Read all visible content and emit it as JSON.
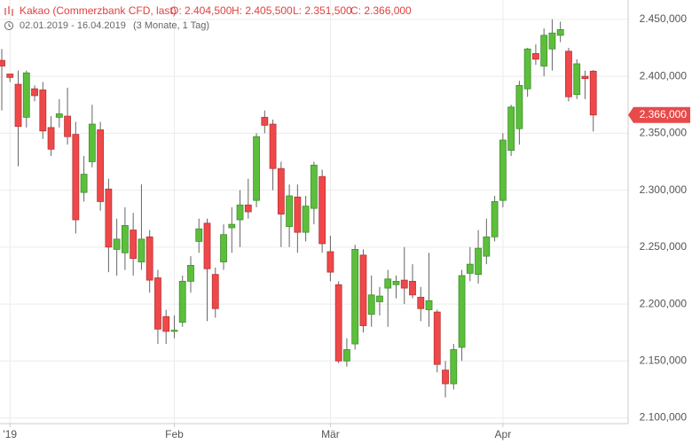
{
  "header": {
    "title": "Kakao (Commerzbank CFD, last)",
    "open": "O: 2.404,500",
    "high": "H: 2.405,500",
    "low": "L: 2.351,500",
    "close": "C: 2.366,000",
    "period": "02.01.2019 - 16.04.2019",
    "span": "(3 Monate, 1 Tag)"
  },
  "chart_data": {
    "type": "candlestick",
    "categories": [
      null,
      "'19",
      null,
      null,
      null,
      null,
      null,
      null,
      null,
      null,
      null,
      null,
      null,
      null,
      null,
      null,
      null,
      null,
      null,
      null,
      null,
      "Feb",
      null,
      null,
      null,
      null,
      null,
      null,
      null,
      null,
      null,
      null,
      null,
      null,
      null,
      null,
      null,
      null,
      null,
      null,
      "Mär",
      null,
      null,
      null,
      null,
      null,
      null,
      null,
      null,
      null,
      null,
      null,
      null,
      null,
      null,
      null,
      null,
      null,
      null,
      null,
      null,
      "Apr",
      null,
      null,
      null,
      null,
      null,
      null,
      null,
      null,
      null,
      null,
      null
    ],
    "open": [
      2414,
      2402,
      2393,
      2364,
      2389,
      2388,
      2355,
      2364,
      2365,
      2349,
      2298,
      2325,
      2353,
      2301,
      2248,
      2245,
      2265,
      2237,
      2259,
      2223,
      2189,
      2176,
      2184,
      2220,
      2255,
      2271,
      2226,
      2237,
      2267,
      2274,
      2287,
      2291,
      2364,
      2358,
      2319,
      2268,
      2294,
      2263,
      2284,
      2312,
      2246,
      2217,
      2150,
      2165,
      2243,
      2191,
      2202,
      2214,
      2217,
      2221,
      2220,
      2206,
      2195,
      2193,
      2142,
      2130,
      2162,
      2227,
      2226,
      2242,
      2259,
      2291,
      2335,
      2354,
      2389,
      2420,
      2409,
      2424,
      2436,
      2422,
      2384,
      2400,
      2404.5
    ],
    "high": [
      2424,
      2402,
      2405,
      2405,
      2392,
      2395,
      2365,
      2380,
      2390,
      2360,
      2330,
      2375,
      2360,
      2310,
      2275,
      2285,
      2280,
      2305,
      2265,
      2230,
      2195,
      2190,
      2225,
      2242,
      2275,
      2275,
      2232,
      2270,
      2285,
      2300,
      2310,
      2350,
      2370,
      2362,
      2325,
      2305,
      2305,
      2295,
      2325,
      2318,
      2260,
      2220,
      2170,
      2252,
      2248,
      2225,
      2215,
      2230,
      2225,
      2250,
      2235,
      2215,
      2245,
      2195,
      2150,
      2165,
      2230,
      2250,
      2265,
      2275,
      2295,
      2350,
      2375,
      2396,
      2425,
      2428,
      2442,
      2450,
      2448,
      2425,
      2415,
      2405,
      2405.5
    ],
    "low": [
      2370,
      2395,
      2321,
      2355,
      2378,
      2345,
      2330,
      2355,
      2340,
      2262,
      2290,
      2320,
      2282,
      2228,
      2225,
      2230,
      2225,
      2230,
      2210,
      2165,
      2165,
      2170,
      2180,
      2210,
      2245,
      2185,
      2188,
      2230,
      2245,
      2250,
      2275,
      2285,
      2350,
      2300,
      2250,
      2250,
      2245,
      2255,
      2270,
      2245,
      2220,
      2148,
      2145,
      2160,
      2175,
      2180,
      2190,
      2180,
      2205,
      2200,
      2205,
      2185,
      2180,
      2140,
      2118,
      2125,
      2150,
      2220,
      2218,
      2235,
      2255,
      2285,
      2330,
      2340,
      2382,
      2410,
      2400,
      2405,
      2430,
      2378,
      2380,
      2380,
      2351.5
    ],
    "close": [
      2409,
      2399,
      2356,
      2403,
      2383,
      2352,
      2336,
      2367,
      2347,
      2274,
      2314,
      2358,
      2290,
      2250,
      2257,
      2269,
      2240,
      2257,
      2221,
      2178,
      2176,
      2177,
      2220,
      2234,
      2266,
      2231,
      2196,
      2261,
      2270,
      2287,
      2281,
      2347,
      2357,
      2319,
      2279,
      2295,
      2263,
      2286,
      2322,
      2253,
      2228,
      2150,
      2160,
      2248,
      2181,
      2208,
      2207,
      2222,
      2220,
      2214,
      2208,
      2196,
      2203,
      2147,
      2130,
      2160,
      2225,
      2235,
      2249,
      2259,
      2290,
      2344,
      2373,
      2392,
      2424,
      2415,
      2436,
      2438,
      2441,
      2382,
      2411,
      2398,
      2366
    ],
    "up_color": "#5cbf3c",
    "down_color": "#f0484a",
    "current_price": {
      "value": 2366,
      "label": "2.366,000"
    },
    "ylim": [
      2095,
      2467
    ],
    "yticks": [
      {
        "value": 2100,
        "label": "2.100,000"
      },
      {
        "value": 2150,
        "label": "2.150,000"
      },
      {
        "value": 2200,
        "label": "2.200,000"
      },
      {
        "value": 2250,
        "label": "2.250,000"
      },
      {
        "value": 2300,
        "label": "2.300,000"
      },
      {
        "value": 2350,
        "label": "2.350,000"
      },
      {
        "value": 2400,
        "label": "2.400,000"
      },
      {
        "value": 2450,
        "label": "2.450,000"
      }
    ],
    "grid": true
  }
}
